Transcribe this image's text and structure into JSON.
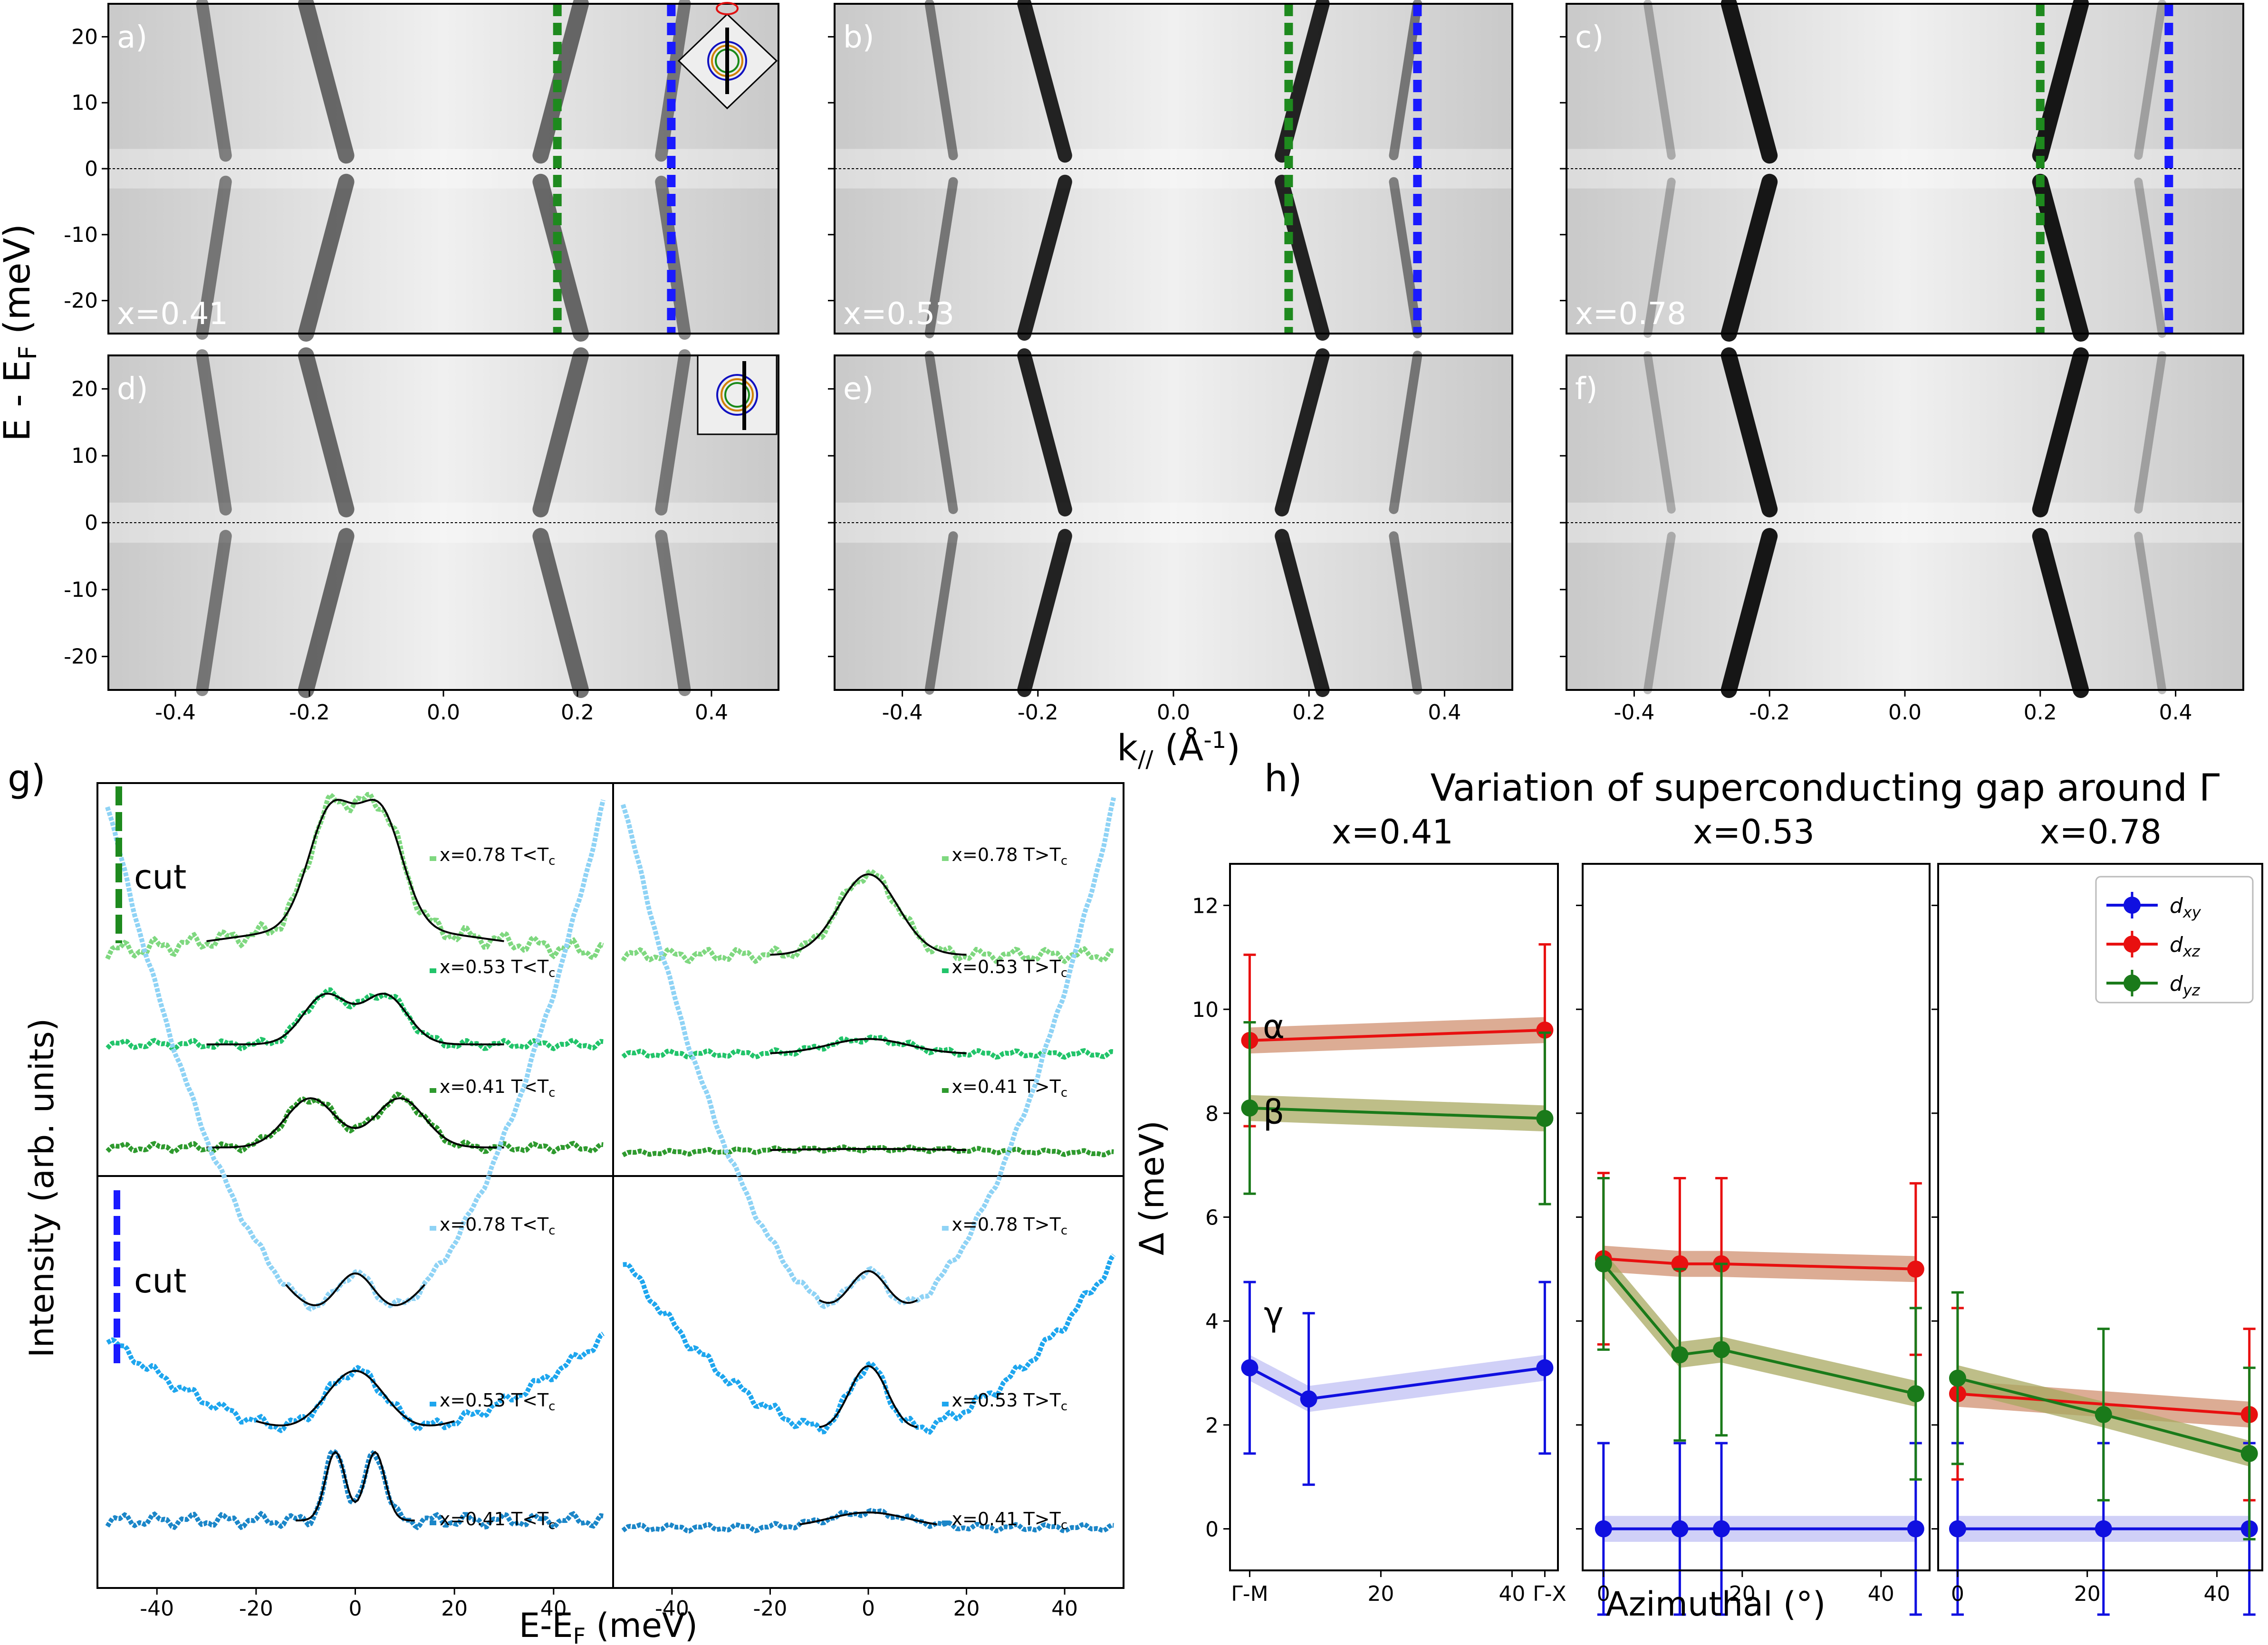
{
  "colors": {
    "green_cut": "#1e8a1e",
    "blue_cut": "#1a1aff",
    "dxy": "#1010e0",
    "dxz": "#e81010",
    "dyz": "#1a7a1a",
    "green_dark": "#2e9a2e",
    "green_mid": "#22c46a",
    "green_light": "#7fd880",
    "blue_dark": "#1b86c8",
    "blue_mid": "#1ea6ee",
    "blue_light": "#8fd3f5"
  },
  "arpes": {
    "ylabel": "E - E",
    "ylabel_sub": "F",
    "ylabel_unit": " (meV)",
    "xlabel": "k",
    "xlabel_sub": "//",
    "xlabel_unit_open": " (Å",
    "xlabel_unit_sup": "-1",
    "xlabel_unit_close": ")",
    "yticks": [
      "20",
      "10",
      "0",
      "-10",
      "-20"
    ],
    "xticks": [
      "-0.4",
      "-0.2",
      "0.0",
      "0.2",
      "0.4"
    ],
    "panels": [
      {
        "label": "a)",
        "doping": "x=0.41"
      },
      {
        "label": "b)",
        "doping": "x=0.53"
      },
      {
        "label": "c)",
        "doping": "x=0.78"
      },
      {
        "label": "d)",
        "doping": ""
      },
      {
        "label": "e)",
        "doping": ""
      },
      {
        "label": "f)",
        "doping": ""
      }
    ]
  },
  "edc": {
    "label": "g)",
    "ylabel": "Intensity (arb. units)",
    "xlabel": "E-E",
    "xlabel_sub": "F",
    "xlabel_unit": " (meV)",
    "xticks": [
      "-40",
      "-20",
      "0",
      "20",
      "40"
    ],
    "cut_label": "cut",
    "left_green": [
      "x=0.78 T<T",
      "x=0.53 T<T",
      "x=0.41 T<T"
    ],
    "right_green": [
      "x=0.78 T>T",
      "x=0.53 T>T",
      "x=0.41 T>T"
    ],
    "left_blue": [
      "x=0.78 T<T",
      "x=0.53 T<T",
      "x=0.41 T<T"
    ],
    "right_blue": [
      "x=0.78 T>T",
      "x=0.53 T>T",
      "x=0.41 T>T"
    ],
    "tc_sub": "c"
  },
  "chart_data": {
    "type": "line",
    "label": "h)",
    "title": "Variation of superconducting gap around Γ",
    "ylabel": "Δ (meV)",
    "xlabel": "Azimuthal (°)",
    "ylim": [
      -0.8,
      12.8
    ],
    "xlim": [
      -3,
      47
    ],
    "yticks": [
      "0",
      "2",
      "4",
      "6",
      "8",
      "10",
      "12"
    ],
    "xticks": [
      "0",
      "20",
      "40"
    ],
    "xtick_labels_first_panel": [
      "Γ-M",
      "20",
      "40",
      "Γ-X"
    ],
    "legend": [
      "d",
      "d",
      "d"
    ],
    "legend_sub": [
      "xy",
      "xz",
      "yz"
    ],
    "greek_labels": [
      "α",
      "β",
      "γ"
    ],
    "panels": [
      {
        "title": "x=0.41",
        "series": [
          {
            "name": "dxy",
            "x": [
              0,
              9,
              45
            ],
            "y": [
              3.1,
              2.5,
              3.1
            ],
            "err": [
              1.65,
              1.65,
              1.65
            ]
          },
          {
            "name": "dxz",
            "x": [
              0,
              45
            ],
            "y": [
              9.4,
              9.6
            ],
            "err": [
              1.65,
              1.65
            ]
          },
          {
            "name": "dyz",
            "x": [
              0,
              45
            ],
            "y": [
              8.1,
              7.9
            ],
            "err": [
              1.65,
              1.65
            ]
          }
        ]
      },
      {
        "title": "x=0.53",
        "series": [
          {
            "name": "dxy",
            "x": [
              0,
              11,
              17,
              45
            ],
            "y": [
              0,
              0,
              0,
              0
            ],
            "err": [
              1.65,
              1.65,
              1.65,
              1.65
            ]
          },
          {
            "name": "dxz",
            "x": [
              0,
              11,
              17,
              45
            ],
            "y": [
              5.2,
              5.1,
              5.1,
              5.0
            ],
            "err": [
              1.65,
              1.65,
              1.65,
              1.65
            ]
          },
          {
            "name": "dyz",
            "x": [
              0,
              11,
              17,
              45
            ],
            "y": [
              5.1,
              3.35,
              3.45,
              2.6
            ],
            "err": [
              1.65,
              1.65,
              1.65,
              1.65
            ]
          }
        ]
      },
      {
        "title": "x=0.78",
        "series": [
          {
            "name": "dxy",
            "x": [
              0,
              22.5,
              45
            ],
            "y": [
              0,
              0,
              0
            ],
            "err": [
              1.65,
              1.65,
              1.65
            ]
          },
          {
            "name": "dxz",
            "x": [
              0,
              45
            ],
            "y": [
              2.6,
              2.2
            ],
            "err": [
              1.65,
              1.65
            ]
          },
          {
            "name": "dyz",
            "x": [
              0,
              22.5,
              45
            ],
            "y": [
              2.9,
              2.2,
              1.45
            ],
            "err": [
              1.65,
              1.65,
              1.65
            ]
          }
        ]
      }
    ]
  }
}
